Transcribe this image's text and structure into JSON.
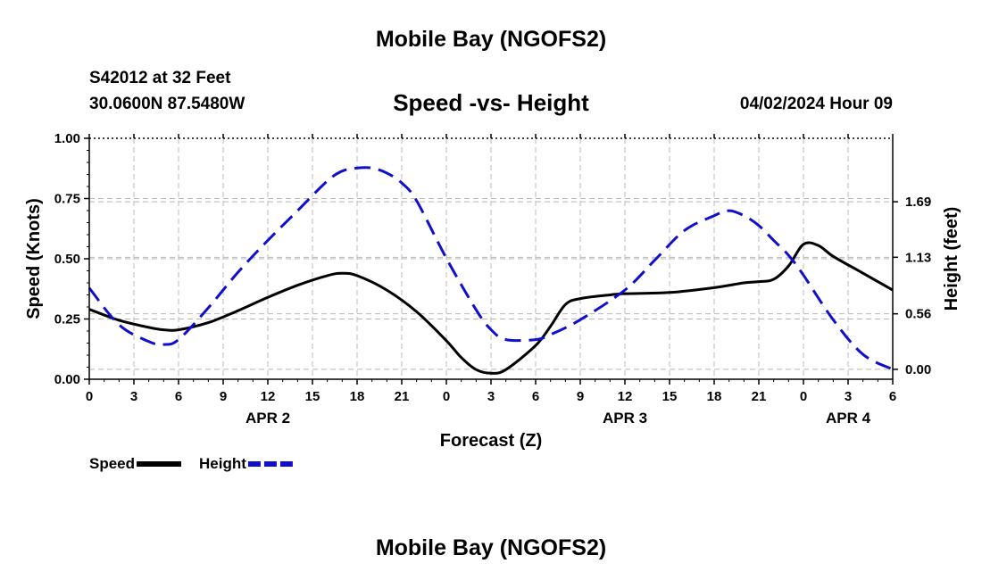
{
  "header": {
    "title": "Mobile Bay (NGOFS2)",
    "station": "S42012 at 32 Feet",
    "coords": "30.0600N  87.5480W",
    "subtitle": "Speed -vs- Height",
    "datetime": "04/02/2024 Hour 09",
    "footer_title": "Mobile Bay (NGOFS2)"
  },
  "chart_data": {
    "type": "line",
    "title": "Speed -vs- Height",
    "xlabel": "Forecast (Z)",
    "ylabel": "Speed (Knots)",
    "y2label": "Height (feet)",
    "x_unit": "hours from APR 2 00Z",
    "xlim": [
      0,
      54
    ],
    "ylim": [
      0,
      1
    ],
    "y2lim": [
      -0.1,
      2.33
    ],
    "x_ticks": [
      0,
      3,
      6,
      9,
      12,
      15,
      18,
      21,
      24,
      27,
      30,
      33,
      36,
      39,
      42,
      45,
      48,
      51,
      54
    ],
    "x_tick_labels": [
      "0",
      "3",
      "6",
      "9",
      "12",
      "15",
      "18",
      "21",
      "0",
      "3",
      "6",
      "9",
      "12",
      "15",
      "18",
      "21",
      "0",
      "3",
      "6"
    ],
    "y_ticks": [
      0,
      0.25,
      0.5,
      0.75,
      1.0
    ],
    "y_tick_labels": [
      "0.00",
      "0.25",
      "0.50",
      "0.75",
      "1.00"
    ],
    "y2_ticks": [
      0,
      0.56,
      1.13,
      1.69
    ],
    "y2_tick_labels": [
      "0.00",
      "0.56",
      "1.13",
      "1.69"
    ],
    "date_labels": [
      {
        "x": 12,
        "label": "APR 2"
      },
      {
        "x": 36,
        "label": "APR 3"
      },
      {
        "x": 51,
        "label": "APR 4"
      }
    ],
    "grid": true,
    "legend_position": "bottom-left",
    "series": [
      {
        "name": "Speed",
        "axis": "left",
        "color": "#000000",
        "dash": "solid",
        "x": [
          0,
          2,
          4,
          5,
          6,
          8,
          10,
          12,
          14,
          16,
          17,
          18,
          20,
          22,
          24,
          25,
          26,
          27,
          28,
          30,
          31,
          32,
          33,
          35,
          36,
          39,
          42,
          44,
          45,
          46,
          47,
          48,
          49,
          50,
          52,
          54
        ],
        "y": [
          0.29,
          0.245,
          0.215,
          0.205,
          0.205,
          0.235,
          0.285,
          0.34,
          0.39,
          0.43,
          0.44,
          0.43,
          0.37,
          0.28,
          0.16,
          0.09,
          0.04,
          0.025,
          0.04,
          0.14,
          0.22,
          0.31,
          0.335,
          0.35,
          0.355,
          0.36,
          0.38,
          0.4,
          0.405,
          0.415,
          0.47,
          0.56,
          0.555,
          0.51,
          0.44,
          0.37
        ]
      },
      {
        "name": "Height",
        "axis": "right",
        "color": "#1010cc",
        "dash": "dashed",
        "x": [
          0,
          2,
          4,
          5,
          6,
          8,
          10,
          12,
          14,
          16,
          17,
          18,
          19,
          20,
          21,
          22,
          24,
          26,
          27,
          28,
          30,
          31,
          33,
          36,
          38,
          40,
          42,
          43,
          44,
          45,
          46,
          47,
          48,
          50,
          52,
          54
        ],
        "y": [
          0.82,
          0.45,
          0.28,
          0.25,
          0.3,
          0.62,
          0.98,
          1.3,
          1.6,
          1.9,
          2.0,
          2.03,
          2.03,
          1.98,
          1.88,
          1.7,
          1.12,
          0.6,
          0.4,
          0.3,
          0.3,
          0.35,
          0.5,
          0.8,
          1.1,
          1.4,
          1.55,
          1.6,
          1.55,
          1.45,
          1.3,
          1.15,
          0.95,
          0.5,
          0.15,
          0.0
        ]
      }
    ]
  }
}
